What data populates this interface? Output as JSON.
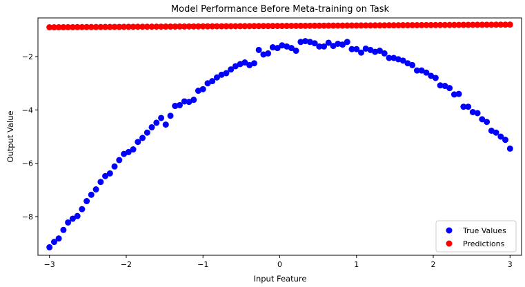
{
  "chart_data": {
    "type": "scatter",
    "title": "Model Performance Before Meta-training on Task",
    "xlabel": "Input Feature",
    "ylabel": "Output Value",
    "xlim": [
      -3.15,
      3.15
    ],
    "ylim": [
      -9.45,
      -0.55
    ],
    "xticks": [
      -3,
      -2,
      -1,
      0,
      1,
      2,
      3
    ],
    "xtick_labels": [
      "−3",
      "−2",
      "−1",
      "0",
      "1",
      "2",
      "3"
    ],
    "yticks": [
      -8,
      -6,
      -4,
      -2
    ],
    "ytick_labels": [
      "−8",
      "−6",
      "−4",
      "−2"
    ],
    "grid": false,
    "legend_position": "lower-right",
    "series": [
      {
        "name": "True Values",
        "color": "#0000ff",
        "x": [
          -3.0,
          -2.939,
          -2.879,
          -2.818,
          -2.758,
          -2.697,
          -2.636,
          -2.576,
          -2.515,
          -2.455,
          -2.394,
          -2.333,
          -2.273,
          -2.212,
          -2.152,
          -2.091,
          -2.03,
          -1.97,
          -1.909,
          -1.848,
          -1.788,
          -1.727,
          -1.667,
          -1.606,
          -1.545,
          -1.485,
          -1.424,
          -1.364,
          -1.303,
          -1.242,
          -1.182,
          -1.121,
          -1.061,
          -1.0,
          -0.939,
          -0.879,
          -0.818,
          -0.758,
          -0.697,
          -0.636,
          -0.576,
          -0.515,
          -0.455,
          -0.394,
          -0.333,
          -0.273,
          -0.212,
          -0.152,
          -0.091,
          -0.03,
          0.03,
          0.091,
          0.152,
          0.212,
          0.273,
          0.333,
          0.394,
          0.455,
          0.515,
          0.576,
          0.636,
          0.697,
          0.758,
          0.818,
          0.879,
          0.939,
          1.0,
          1.061,
          1.121,
          1.182,
          1.242,
          1.303,
          1.364,
          1.424,
          1.485,
          1.545,
          1.606,
          1.667,
          1.727,
          1.788,
          1.848,
          1.909,
          1.97,
          2.03,
          2.091,
          2.152,
          2.212,
          2.273,
          2.333,
          2.394,
          2.455,
          2.515,
          2.576,
          2.636,
          2.697,
          2.758,
          2.818,
          2.879,
          2.939,
          3.0
        ],
        "y": [
          -9.15,
          -8.95,
          -8.82,
          -8.5,
          -8.22,
          -8.08,
          -7.98,
          -7.72,
          -7.42,
          -7.18,
          -6.98,
          -6.7,
          -6.48,
          -6.38,
          -6.12,
          -5.88,
          -5.65,
          -5.58,
          -5.48,
          -5.2,
          -5.05,
          -4.85,
          -4.65,
          -4.48,
          -4.3,
          -4.55,
          -4.22,
          -3.85,
          -3.82,
          -3.68,
          -3.7,
          -3.62,
          -3.28,
          -3.22,
          -3.0,
          -2.92,
          -2.78,
          -2.68,
          -2.62,
          -2.48,
          -2.36,
          -2.28,
          -2.22,
          -2.32,
          -2.25,
          -1.75,
          -1.92,
          -1.88,
          -1.65,
          -1.68,
          -1.58,
          -1.62,
          -1.68,
          -1.78,
          -1.45,
          -1.42,
          -1.45,
          -1.5,
          -1.62,
          -1.62,
          -1.48,
          -1.6,
          -1.52,
          -1.55,
          -1.45,
          -1.72,
          -1.72,
          -1.85,
          -1.7,
          -1.75,
          -1.82,
          -1.78,
          -1.88,
          -2.05,
          -2.05,
          -2.1,
          -2.15,
          -2.25,
          -2.32,
          -2.52,
          -2.52,
          -2.6,
          -2.72,
          -2.8,
          -3.08,
          -3.1,
          -3.18,
          -3.42,
          -3.4,
          -3.88,
          -3.88,
          -4.08,
          -4.12,
          -4.35,
          -4.45,
          -4.78,
          -4.85,
          -5.0,
          -5.12,
          -5.45
        ]
      },
      {
        "name": "Predictions",
        "color": "#ff0000",
        "x_start": -3.0,
        "x_end": 3.0,
        "count": 100,
        "y_start": -0.9,
        "y_end": -0.8
      }
    ]
  }
}
